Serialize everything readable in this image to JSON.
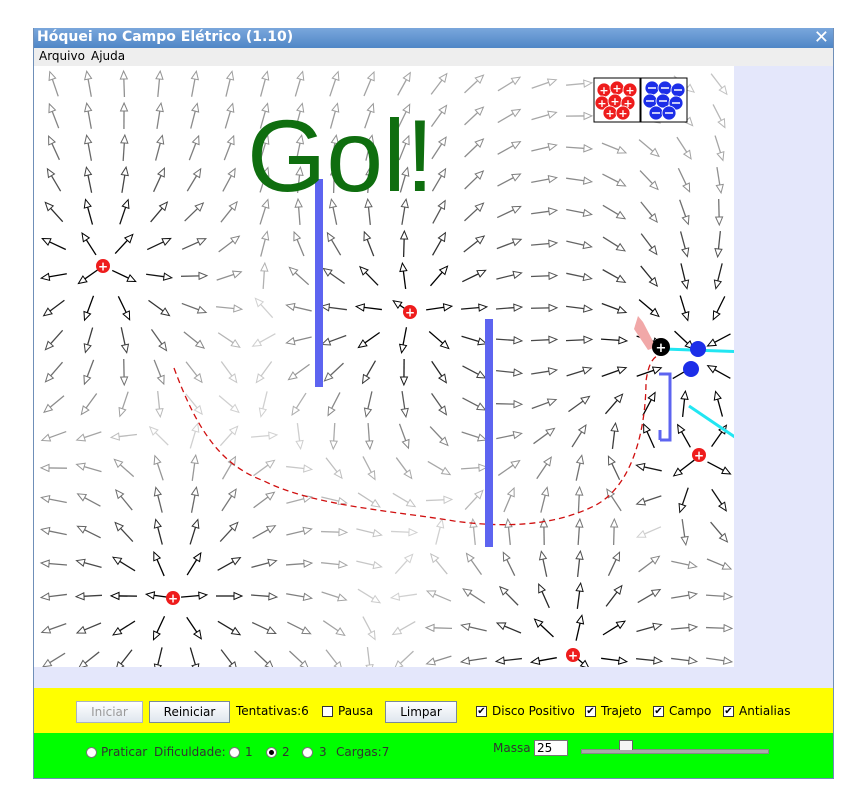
{
  "window": {
    "title": "Hóquei no Campo Elétrico (1.10)",
    "close_glyph": "✕"
  },
  "menu": {
    "items": [
      {
        "label": "Arquivo"
      },
      {
        "label": "Ajuda"
      }
    ]
  },
  "playfield": {
    "message": "Gol!",
    "message_color": "#0f6e0f",
    "charge_bin_positive_symbol": "+",
    "charge_bin_negative_symbol": "−",
    "positive_charge_color": "#ee1c1c",
    "negative_charge_color": "#1c2ee8",
    "barrier_color": "#5d64f0",
    "path_color": "#d01010",
    "detector_color": "#22e6f2"
  },
  "controls": {
    "start_label": "Iniciar",
    "reset_label": "Reiniciar",
    "attempts_label": "Tentativas:6",
    "pause_label": "Pausa",
    "pause_checked": false,
    "clear_label": "Limpar",
    "positive_disk_label": "Disco Positivo",
    "positive_disk_checked": true,
    "trace_label": "Trajeto",
    "trace_checked": true,
    "field_label": "Campo",
    "field_checked": true,
    "antialias_label": "Antialias",
    "antialias_checked": true
  },
  "settings": {
    "practice_label": "Praticar",
    "difficulty_label": "Dificuldade:",
    "level_1_label": "1",
    "level_2_label": "2",
    "level_3_label": "3",
    "selected_level": "2",
    "charges_label": "Cargas:7",
    "mass_label": "Massa",
    "mass_value": "25",
    "mass_slider_level": 0.24
  },
  "icons": {
    "check": "✔"
  }
}
